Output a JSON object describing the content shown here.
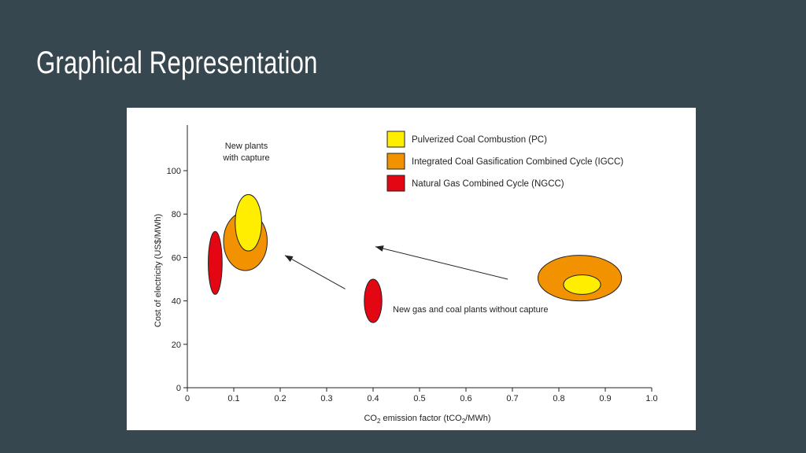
{
  "slide": {
    "title": "Graphical Representation"
  },
  "colors": {
    "background": "#37474f",
    "pc": "#ffee00",
    "igcc": "#f39200",
    "ngcc": "#e30613",
    "outline": "#222222"
  },
  "chart_data": {
    "type": "scatter",
    "xlabel": "CO2 emission factor (tCO2/MWh)",
    "xlabel_parts": {
      "a": "CO",
      "sub1": "2",
      "b": " emission factor (tCO",
      "sub2": "2",
      "c": "/MWh)"
    },
    "ylabel": "Cost of electricity (US$/MWh)",
    "xlim": [
      0,
      1.0
    ],
    "ylim": [
      0,
      120
    ],
    "x_ticks": [
      0,
      0.1,
      0.2,
      0.3,
      0.4,
      0.5,
      0.6,
      0.7,
      0.8,
      0.9,
      1.0
    ],
    "x_tick_labels": [
      "0",
      "0.1",
      "0.2",
      "0.3",
      "0.4",
      "0.5",
      "0.6",
      "0.7",
      "0.8",
      "0.9",
      "1.0"
    ],
    "y_ticks": [
      0,
      20,
      40,
      60,
      80,
      100
    ],
    "y_tick_labels": [
      "0",
      "20",
      "40",
      "60",
      "80",
      "100"
    ],
    "grid": false,
    "legend_position": "top-right",
    "legend": [
      {
        "key": "pc",
        "label": "Pulverized Coal Combustion (PC)",
        "color": "#ffee00"
      },
      {
        "key": "igcc",
        "label": "Integrated Coal Gasification Combined Cycle (IGCC)",
        "color": "#f39200"
      },
      {
        "key": "ngcc",
        "label": "Natural Gas Combined Cycle (NGCC)",
        "color": "#e30613"
      }
    ],
    "regions": [
      {
        "id": "ngcc-with-capture",
        "tech": "ngcc",
        "group": "with capture",
        "x_range": [
          0.045,
          0.075
        ],
        "y_range": [
          43,
          72
        ],
        "color": "#e30613"
      },
      {
        "id": "igcc-with-capture",
        "tech": "igcc",
        "group": "with capture",
        "x_range": [
          0.078,
          0.172
        ],
        "y_range": [
          54,
          81
        ],
        "color": "#f39200"
      },
      {
        "id": "pc-with-capture",
        "tech": "pc",
        "group": "with capture",
        "x_range": [
          0.103,
          0.16
        ],
        "y_range": [
          63,
          89
        ],
        "color": "#ffee00"
      },
      {
        "id": "ngcc-without-capture",
        "tech": "ngcc",
        "group": "without capture",
        "x_range": [
          0.381,
          0.419
        ],
        "y_range": [
          30,
          50
        ],
        "color": "#e30613"
      },
      {
        "id": "igcc-without-capture",
        "tech": "igcc",
        "group": "without capture",
        "x_range": [
          0.755,
          0.935
        ],
        "y_range": [
          40,
          61
        ],
        "color": "#f39200"
      },
      {
        "id": "pc-without-capture",
        "tech": "pc",
        "group": "without capture",
        "x_range": [
          0.81,
          0.89
        ],
        "y_range": [
          43,
          52
        ],
        "color": "#ffee00"
      }
    ],
    "annotations": [
      {
        "id": "with-capture",
        "lines": [
          "New plants",
          "with capture"
        ]
      },
      {
        "id": "without-capture",
        "lines": [
          "New gas and coal plants without capture"
        ]
      }
    ],
    "arrows": [
      {
        "id": "arrow-gas",
        "from": [
          0.34,
          45.5
        ],
        "to": [
          0.21,
          61
        ]
      },
      {
        "id": "arrow-coal",
        "from": [
          0.69,
          50
        ],
        "to": [
          0.405,
          65
        ]
      }
    ]
  }
}
